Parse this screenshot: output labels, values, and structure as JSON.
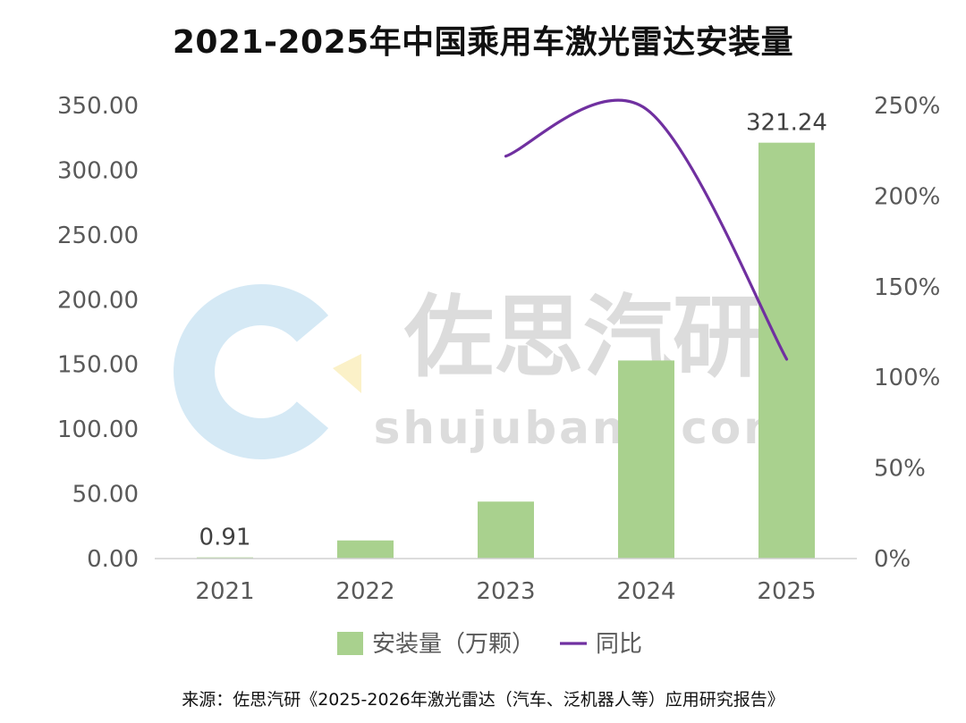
{
  "title": "2021-2025年中国乘用车激光雷达安装量",
  "source": "来源：佐思汽研《2025-2026年激光雷达（汽车、泛机器人等）应用研究报告》",
  "watermark": {
    "brand": "佐思汽研",
    "site": "shujubang.com",
    "logo_color": "#d5e9f5",
    "logo_accent_color": "#fbf1c8"
  },
  "chart_data": {
    "type": "bar",
    "title": "2021-2025年中国乘用车激光雷达安装量",
    "categories": [
      "2021",
      "2022",
      "2023",
      "2024",
      "2025"
    ],
    "series": [
      {
        "name": "安装量（万颗）",
        "type": "bar",
        "axis": "left",
        "color": "#a9d18e",
        "values": [
          0.91,
          14,
          44,
          153,
          321.24
        ],
        "labels": [
          "0.91",
          "",
          "",
          "",
          "321.24"
        ]
      },
      {
        "name": "同比",
        "type": "line",
        "axis": "right",
        "color": "#7030a0",
        "values": [
          null,
          null,
          222,
          248,
          110
        ]
      }
    ],
    "y_left": {
      "ylim": [
        0,
        350
      ],
      "ticks": [
        "0.00",
        "50.00",
        "100.00",
        "150.00",
        "200.00",
        "250.00",
        "300.00",
        "350.00"
      ]
    },
    "y_right": {
      "ylim": [
        0,
        250
      ],
      "ticks": [
        "0%",
        "50%",
        "100%",
        "150%",
        "200%",
        "250%"
      ]
    },
    "grid": false,
    "legend_position": "bottom"
  }
}
